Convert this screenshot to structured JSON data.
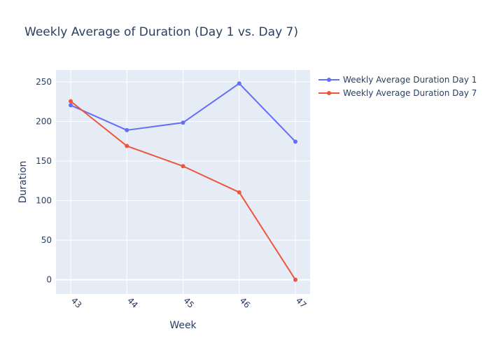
{
  "chart_data": {
    "type": "line",
    "title": "Weekly Average of Duration (Day 1 vs. Day 7)",
    "xlabel": "Week",
    "ylabel": "Duration",
    "categories": [
      "43",
      "44",
      "45",
      "46",
      "47"
    ],
    "ylim": [
      -18,
      265
    ],
    "yticks": [
      0,
      50,
      100,
      150,
      200,
      250
    ],
    "grid": true,
    "legend_position": "top-right",
    "series": [
      {
        "name": "Weekly Average Duration Day 1",
        "color": "#636efa",
        "values": [
          220.5,
          189,
          198.5,
          248,
          174.5
        ]
      },
      {
        "name": "Weekly Average Duration Day 7",
        "color": "#ef553b",
        "values": [
          225.5,
          169,
          143.5,
          110.5,
          0
        ]
      }
    ]
  },
  "colors": {
    "plot_bg": "#e5ecf6",
    "grid": "#ffffff",
    "text": "#2a3f5f"
  }
}
